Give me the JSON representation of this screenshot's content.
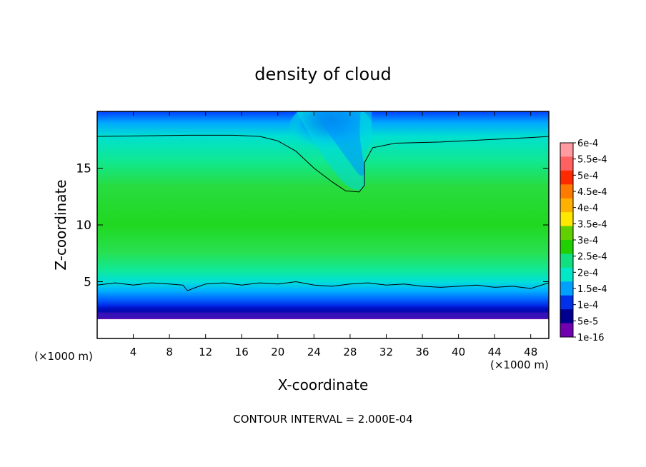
{
  "chart_data": {
    "type": "heatmap",
    "title": "density of cloud",
    "xlabel": "X-coordinate",
    "ylabel": "Z-coordinate",
    "x_unit_left": "(×1000 m)",
    "x_unit_right": "(×1000 m)",
    "xlim": [
      0,
      50
    ],
    "ylim": [
      0,
      20
    ],
    "x_ticks": [
      "4",
      "8",
      "12",
      "16",
      "20",
      "24",
      "28",
      "32",
      "36",
      "40",
      "44",
      "48"
    ],
    "y_ticks": [
      "5",
      "10",
      "15"
    ],
    "footer": "CONTOUR INTERVAL = 2.000E-04",
    "colorbar": {
      "labels": [
        "6e-4",
        "5.5e-4",
        "5e-4",
        "4.5e-4",
        "4e-4",
        "3.5e-4",
        "3e-4",
        "2.5e-4",
        "2e-4",
        "1.5e-4",
        "1e-4",
        "5e-5",
        "1e-16"
      ],
      "colors": [
        "#ff9aa0",
        "#ff6060",
        "#ff2a00",
        "#ff7a00",
        "#ffb000",
        "#ffe800",
        "#60d000",
        "#20d000",
        "#10e080",
        "#00e8c8",
        "#00a0ff",
        "#0030e8",
        "#000090",
        "#7000b0"
      ]
    },
    "contour_lines": [
      {
        "level": 0.0002,
        "points": [
          [
            0,
            17.8
          ],
          [
            5,
            17.85
          ],
          [
            10,
            17.9
          ],
          [
            15,
            17.9
          ],
          [
            18,
            17.8
          ],
          [
            20,
            17.4
          ],
          [
            22,
            16.5
          ],
          [
            24,
            15.0
          ],
          [
            26,
            13.8
          ],
          [
            27.5,
            13.0
          ],
          [
            29,
            12.9
          ],
          [
            29.6,
            13.5
          ],
          [
            29.6,
            15.5
          ],
          [
            30.5,
            16.8
          ],
          [
            33,
            17.2
          ],
          [
            38,
            17.3
          ],
          [
            43,
            17.5
          ],
          [
            48,
            17.7
          ],
          [
            50,
            17.8
          ]
        ]
      },
      {
        "level": 0.0002,
        "points": [
          [
            0,
            4.7
          ],
          [
            2,
            4.9
          ],
          [
            4,
            4.7
          ],
          [
            6,
            4.9
          ],
          [
            8,
            4.8
          ],
          [
            9.5,
            4.7
          ],
          [
            10,
            4.2
          ],
          [
            10.6,
            4.4
          ],
          [
            12,
            4.8
          ],
          [
            14,
            4.9
          ],
          [
            16,
            4.7
          ],
          [
            18,
            4.9
          ],
          [
            20,
            4.8
          ],
          [
            22,
            5.0
          ],
          [
            24,
            4.7
          ],
          [
            26,
            4.6
          ],
          [
            28,
            4.8
          ],
          [
            30,
            4.9
          ],
          [
            32,
            4.7
          ],
          [
            34,
            4.8
          ],
          [
            36,
            4.6
          ],
          [
            38,
            4.5
          ],
          [
            40,
            4.6
          ],
          [
            42,
            4.7
          ],
          [
            44,
            4.5
          ],
          [
            46,
            4.6
          ],
          [
            48,
            4.4
          ],
          [
            50,
            4.9
          ]
        ]
      }
    ]
  }
}
